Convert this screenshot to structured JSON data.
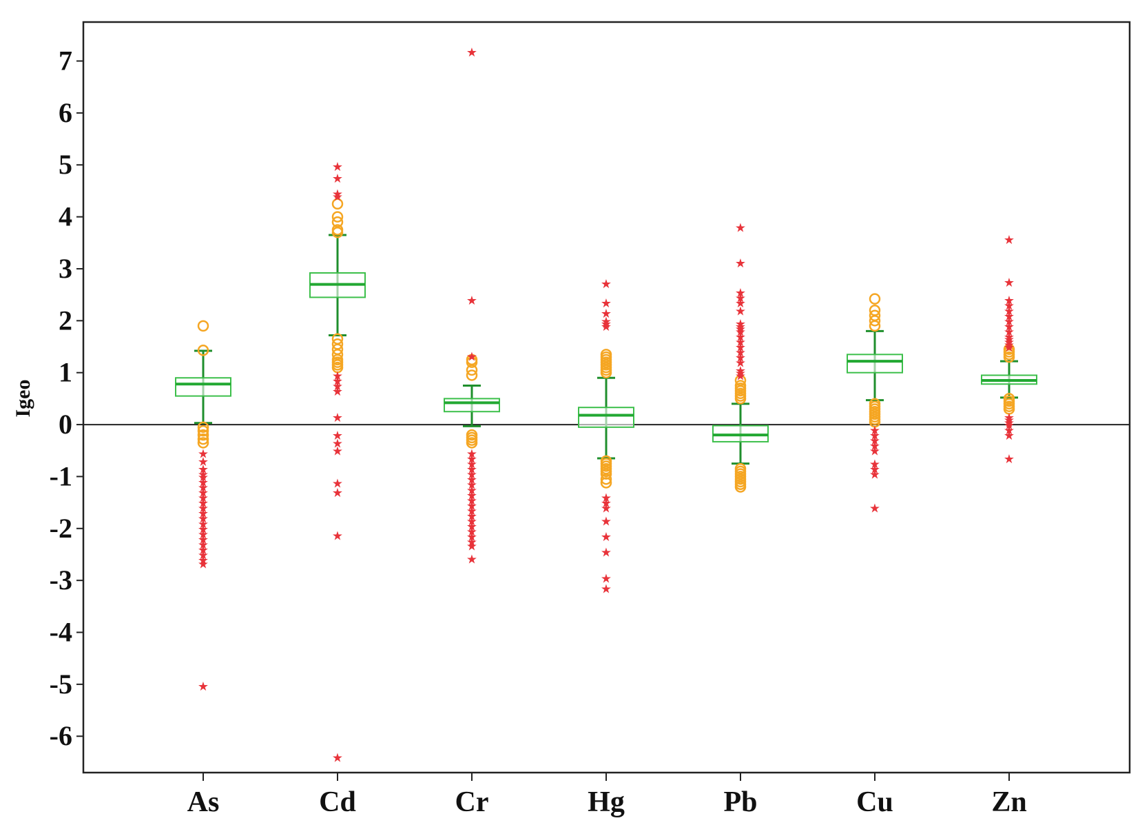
{
  "chart_data": {
    "type": "boxplot",
    "title": "",
    "xlabel": "",
    "ylabel": "Igeo",
    "ylim": [
      -6.7,
      7.75
    ],
    "yticks": [
      -6,
      -5,
      -4,
      -3,
      -2,
      -1,
      0,
      1,
      2,
      3,
      4,
      5,
      6,
      7
    ],
    "reference_line": 0,
    "grid": false,
    "colors": {
      "box": "#3cbf4a",
      "median": "#22a832",
      "whisker": "#1f8f2c",
      "outlier": "#f5a623",
      "extreme": "#e8333a",
      "axis": "#222222"
    },
    "categories": [
      "As",
      "Cd",
      "Cr",
      "Hg",
      "Pb",
      "Cu",
      "Zn"
    ],
    "series": [
      {
        "name": "As",
        "whisker_low": 0.03,
        "q1": 0.55,
        "median": 0.78,
        "q3": 0.9,
        "whisker_high": 1.42,
        "outliers": [
          1.9,
          1.43,
          -0.05,
          -0.12,
          -0.2,
          -0.28,
          -0.35
        ],
        "extremes": [
          -0.55,
          -0.7,
          -0.85,
          -0.95,
          -1.0,
          -1.1,
          -1.2,
          -1.3,
          -1.4,
          -1.5,
          -1.6,
          -1.7,
          -1.8,
          -1.9,
          -2.0,
          -2.1,
          -2.2,
          -2.3,
          -2.4,
          -2.5,
          -2.6,
          -2.67,
          -5.03
        ]
      },
      {
        "name": "Cd",
        "whisker_low": 1.72,
        "q1": 2.45,
        "median": 2.7,
        "q3": 2.92,
        "whisker_high": 3.65,
        "outliers": [
          4.25,
          4.0,
          3.9,
          3.75,
          3.7,
          1.65,
          1.55,
          1.45,
          1.35,
          1.25,
          1.2,
          1.15,
          1.1
        ],
        "extremes": [
          4.98,
          4.75,
          4.45,
          4.4,
          0.95,
          0.85,
          0.75,
          0.65,
          0.15,
          -0.2,
          -0.35,
          -0.5,
          -1.12,
          -1.3,
          -2.13,
          -6.4
        ]
      },
      {
        "name": "Cr",
        "whisker_low": -0.03,
        "q1": 0.25,
        "median": 0.42,
        "q3": 0.5,
        "whisker_high": 0.75,
        "outliers": [
          1.25,
          1.2,
          1.05,
          0.95,
          -0.2,
          -0.25,
          -0.3,
          -0.35
        ],
        "extremes": [
          7.18,
          2.4,
          1.32,
          -0.55,
          -0.65,
          -0.75,
          -0.85,
          -0.95,
          -1.05,
          -1.15,
          -1.25,
          -1.35,
          -1.45,
          -1.55,
          -1.65,
          -1.75,
          -1.85,
          -1.95,
          -2.05,
          -2.15,
          -2.25,
          -2.33,
          -2.58
        ]
      },
      {
        "name": "Hg",
        "whisker_low": -0.65,
        "q1": -0.05,
        "median": 0.18,
        "q3": 0.33,
        "whisker_high": 0.9,
        "outliers": [
          1.35,
          1.3,
          1.25,
          1.2,
          1.15,
          1.1,
          1.05,
          1.0,
          -0.7,
          -0.75,
          -0.8,
          -0.85,
          -0.9,
          -0.95,
          -1.05,
          -1.12
        ],
        "extremes": [
          2.72,
          2.35,
          2.15,
          2.0,
          1.95,
          1.9,
          -1.4,
          -1.5,
          -1.6,
          -1.85,
          -2.15,
          -2.45,
          -2.95,
          -3.15
        ]
      },
      {
        "name": "Pb",
        "whisker_low": -0.75,
        "q1": -0.33,
        "median": -0.2,
        "q3": -0.02,
        "whisker_high": 0.4,
        "outliers": [
          0.85,
          0.75,
          0.7,
          0.65,
          0.6,
          0.55,
          0.5,
          -0.85,
          -0.9,
          -0.95,
          -1.0,
          -1.05,
          -1.1,
          -1.15,
          -1.2
        ],
        "extremes": [
          3.8,
          3.12,
          2.55,
          2.45,
          2.35,
          2.2,
          1.95,
          1.9,
          1.85,
          1.8,
          1.7,
          1.6,
          1.5,
          1.4,
          1.3,
          1.2,
          1.05,
          1.0,
          0.95
        ]
      },
      {
        "name": "Cu",
        "whisker_low": 0.47,
        "q1": 1.0,
        "median": 1.22,
        "q3": 1.35,
        "whisker_high": 1.8,
        "outliers": [
          2.42,
          2.2,
          2.1,
          2.0,
          1.9,
          0.4,
          0.35,
          0.3,
          0.25,
          0.2,
          0.15,
          0.1,
          0.05
        ],
        "extremes": [
          -0.1,
          -0.2,
          -0.3,
          -0.4,
          -0.5,
          -0.75,
          -0.85,
          -0.95,
          -1.6
        ]
      },
      {
        "name": "Zn",
        "whisker_low": 0.52,
        "q1": 0.78,
        "median": 0.85,
        "q3": 0.95,
        "whisker_high": 1.22,
        "outliers": [
          1.45,
          1.4,
          1.35,
          1.3,
          0.5,
          0.45,
          0.4,
          0.35,
          0.3
        ],
        "extremes": [
          3.57,
          2.75,
          2.4,
          2.3,
          2.2,
          2.1,
          2.0,
          1.9,
          1.8,
          1.7,
          1.65,
          1.6,
          1.55,
          1.5,
          0.15,
          0.1,
          0.05,
          0.0,
          -0.1,
          -0.2,
          -0.65
        ]
      }
    ]
  }
}
